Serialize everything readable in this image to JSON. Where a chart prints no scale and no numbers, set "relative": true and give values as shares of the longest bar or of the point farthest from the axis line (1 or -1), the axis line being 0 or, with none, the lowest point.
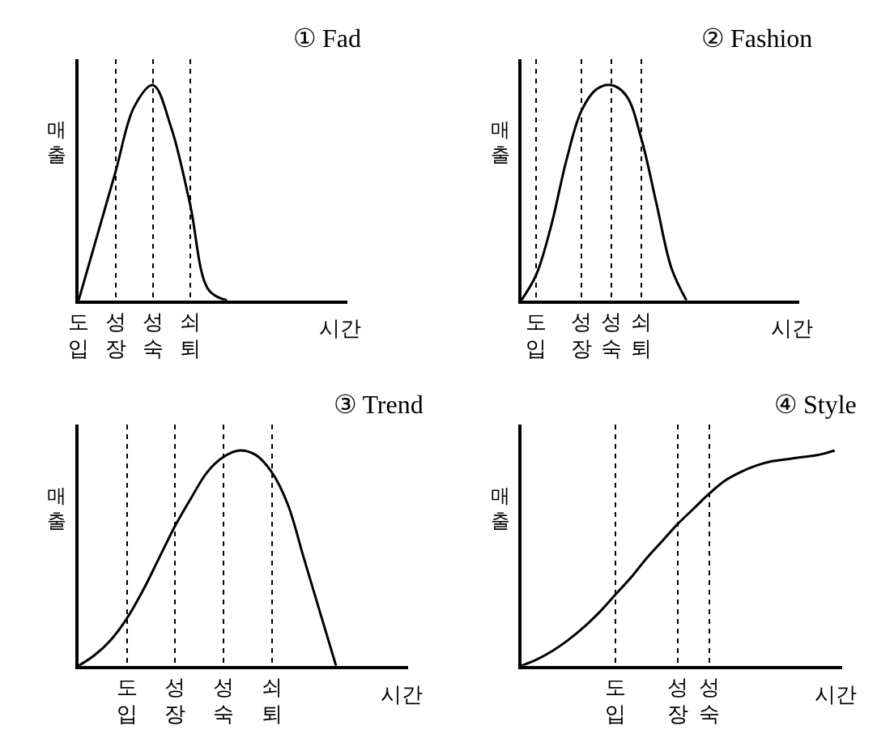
{
  "chart_data": [
    {
      "type": "line",
      "relative": true,
      "title": "① Fad",
      "xlabel": "시간",
      "ylabel": "매출",
      "grid": "x",
      "marker": "none",
      "line_style": "solid",
      "categories": [
        "도입",
        null,
        "성장",
        null,
        "성숙",
        null,
        "쇠퇴",
        null,
        null,
        null,
        null,
        null,
        null,
        null,
        null
      ],
      "series": [
        {
          "color": "#000000",
          "values": [
            0,
            0.3,
            0.6,
            0.9,
            1.0,
            0.8,
            0.45,
            0.05,
            0,
            null,
            null,
            null,
            null,
            null,
            null
          ]
        }
      ]
    },
    {
      "type": "line",
      "relative": true,
      "title": "② Fashion",
      "xlabel": "시간",
      "ylabel": "매출",
      "grid": "x",
      "marker": "none",
      "line_style": "solid",
      "categories": [
        null,
        "도입",
        null,
        null,
        "성장",
        null,
        "성숙",
        null,
        "쇠퇴",
        null,
        null,
        null,
        null,
        null,
        null,
        null,
        null,
        null,
        null
      ],
      "series": [
        {
          "color": "#000000",
          "values": [
            0,
            0.12,
            0.35,
            0.65,
            0.88,
            0.98,
            1.0,
            0.95,
            0.75,
            0.45,
            0.15,
            0,
            null,
            null,
            null,
            null,
            null,
            null,
            null
          ]
        }
      ]
    },
    {
      "type": "line",
      "relative": true,
      "title": "③ Trend",
      "xlabel": "시간",
      "ylabel": "매출",
      "grid": "x",
      "marker": "none",
      "line_style": "solid",
      "categories": [
        null,
        null,
        null,
        "도입",
        null,
        null,
        "성장",
        null,
        null,
        "성숙",
        null,
        null,
        "쇠퇴",
        null,
        null,
        null,
        null,
        null,
        null,
        null,
        null
      ],
      "series": [
        {
          "color": "#000000",
          "values": [
            0,
            0.05,
            0.12,
            0.22,
            0.35,
            0.5,
            0.65,
            0.78,
            0.9,
            0.97,
            1.0,
            0.98,
            0.9,
            0.75,
            0.5,
            0.25,
            0,
            null,
            null,
            null,
            null
          ]
        }
      ]
    },
    {
      "type": "line",
      "relative": true,
      "title": "④ Style",
      "xlabel": "시간",
      "ylabel": "매출",
      "grid": "x",
      "marker": "none",
      "line_style": "solid",
      "categories": [
        null,
        null,
        null,
        null,
        null,
        null,
        "도입",
        null,
        null,
        null,
        "성장",
        null,
        "성숙",
        null,
        null,
        null,
        null,
        null,
        null,
        null,
        null
      ],
      "series": [
        {
          "color": "#000000",
          "values": [
            0,
            0.03,
            0.07,
            0.12,
            0.18,
            0.25,
            0.33,
            0.41,
            0.5,
            0.58,
            0.66,
            0.73,
            0.8,
            0.86,
            0.9,
            0.93,
            0.95,
            0.96,
            0.97,
            0.98,
            1.0
          ]
        }
      ]
    }
  ]
}
